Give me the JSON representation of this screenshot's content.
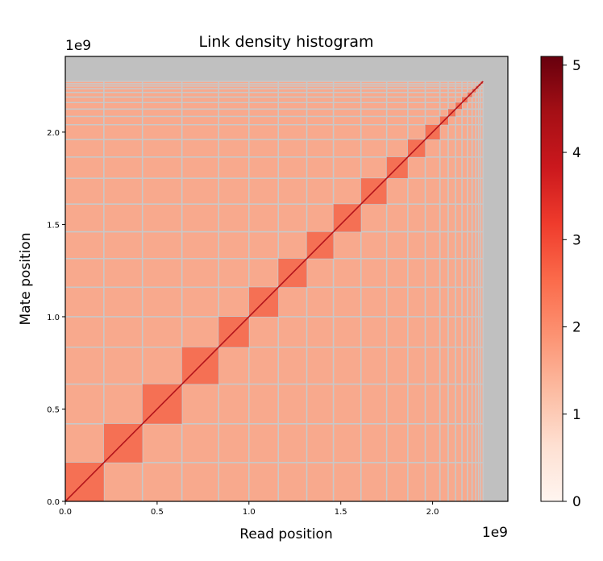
{
  "chart_data": {
    "type": "heatmap",
    "title": "Link density histogram",
    "xlabel": "Read position",
    "ylabel": "Mate position",
    "x_offset_label": "1e9",
    "y_offset_label": "1e9",
    "xlim": [
      0,
      2.41
    ],
    "ylim": [
      0,
      2.41
    ],
    "x_ticks": [
      0.0,
      0.5,
      1.0,
      1.5,
      2.0
    ],
    "x_tick_labels": [
      "0.0",
      "0.5",
      "1.0",
      "1.5",
      "2.0"
    ],
    "y_ticks": [
      0.0,
      0.5,
      1.0,
      1.5,
      2.0
    ],
    "y_tick_labels": [
      "0.0",
      "0.5",
      "1.0",
      "1.5",
      "2.0"
    ],
    "data_extent": 2.275,
    "chromosome_boundaries": [
      0.21,
      0.42,
      0.635,
      0.835,
      1.0,
      1.16,
      1.315,
      1.46,
      1.61,
      1.75,
      1.865,
      1.96,
      2.04,
      2.085,
      2.125,
      2.16,
      2.19,
      2.215,
      2.235,
      2.25,
      2.262,
      2.275
    ],
    "background_color": "#c0c0c0",
    "gridline_color": "#c8c8c8",
    "colorbar": {
      "min": 0,
      "max": 5.1,
      "ticks": [
        0,
        1,
        2,
        3,
        4,
        5
      ],
      "tick_labels": [
        "0",
        "1",
        "2",
        "3",
        "4",
        "5"
      ],
      "colormap": "Reds",
      "colors": [
        "#fff5f0",
        "#fee0d2",
        "#fcbba1",
        "#fc9272",
        "#fb6a4a",
        "#ef3b2c",
        "#cb181d",
        "#a50f15",
        "#67000d"
      ]
    }
  }
}
